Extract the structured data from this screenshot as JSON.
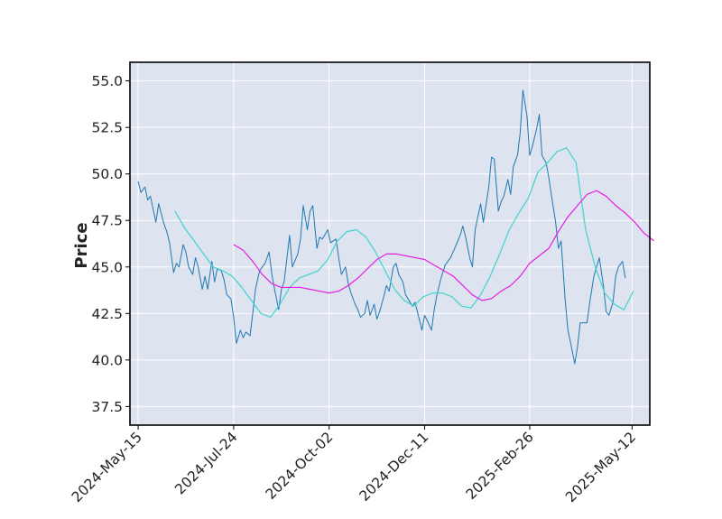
{
  "chart_data": {
    "type": "line",
    "title": "",
    "xlabel": "",
    "ylabel": "Price",
    "x_tick_labels": [
      "2024-May-15",
      "2024-Jul-24",
      "2024-Oct-02",
      "2024-Dec-11",
      "2025-Feb-26",
      "2025-May-12"
    ],
    "y_tick_labels": [
      "37.5",
      "40.0",
      "42.5",
      "45.0",
      "47.5",
      "50.0",
      "52.5",
      "55.0"
    ],
    "ylim": [
      36.5,
      56.0
    ],
    "y_ticks": [
      37.5,
      40.0,
      42.5,
      45.0,
      47.5,
      50.0,
      52.5,
      55.0
    ],
    "x_range": [
      "2024-05-09",
      "2025-05-25"
    ],
    "grid": true,
    "background_color": "#dde3ef",
    "series": [
      {
        "color": "#1f77b4",
        "points": [
          [
            "2024-05-15",
            49.6
          ],
          [
            "2024-05-17",
            49.0
          ],
          [
            "2024-05-20",
            49.3
          ],
          [
            "2024-05-22",
            48.6
          ],
          [
            "2024-05-24",
            48.8
          ],
          [
            "2024-05-28",
            47.4
          ],
          [
            "2024-05-30",
            48.4
          ],
          [
            "2024-06-03",
            47.3
          ],
          [
            "2024-06-05",
            46.9
          ],
          [
            "2024-06-07",
            46.3
          ],
          [
            "2024-06-10",
            44.7
          ],
          [
            "2024-06-12",
            45.2
          ],
          [
            "2024-06-14",
            45.0
          ],
          [
            "2024-06-17",
            46.2
          ],
          [
            "2024-06-19",
            45.8
          ],
          [
            "2024-06-21",
            45.0
          ],
          [
            "2024-06-24",
            44.6
          ],
          [
            "2024-06-26",
            45.5
          ],
          [
            "2024-06-28",
            45.0
          ],
          [
            "2024-07-01",
            43.8
          ],
          [
            "2024-07-03",
            44.5
          ],
          [
            "2024-07-05",
            43.8
          ],
          [
            "2024-07-08",
            45.3
          ],
          [
            "2024-07-10",
            44.2
          ],
          [
            "2024-07-12",
            44.9
          ],
          [
            "2024-07-15",
            44.8
          ],
          [
            "2024-07-17",
            44.3
          ],
          [
            "2024-07-19",
            43.5
          ],
          [
            "2024-07-22",
            43.3
          ],
          [
            "2024-07-24",
            42.3
          ],
          [
            "2024-07-26",
            40.9
          ],
          [
            "2024-07-29",
            41.6
          ],
          [
            "2024-07-31",
            41.2
          ],
          [
            "2024-08-02",
            41.5
          ],
          [
            "2024-08-05",
            41.3
          ],
          [
            "2024-08-07",
            42.5
          ],
          [
            "2024-08-09",
            43.8
          ],
          [
            "2024-08-12",
            44.8
          ],
          [
            "2024-08-14",
            45.0
          ],
          [
            "2024-08-16",
            45.2
          ],
          [
            "2024-08-19",
            45.8
          ],
          [
            "2024-08-21",
            44.6
          ],
          [
            "2024-08-23",
            43.8
          ],
          [
            "2024-08-26",
            42.7
          ],
          [
            "2024-08-28",
            43.8
          ],
          [
            "2024-08-30",
            44.2
          ],
          [
            "2024-09-03",
            46.7
          ],
          [
            "2024-09-05",
            45.0
          ],
          [
            "2024-09-09",
            45.7
          ],
          [
            "2024-09-11",
            46.5
          ],
          [
            "2024-09-13",
            48.3
          ],
          [
            "2024-09-16",
            47.0
          ],
          [
            "2024-09-18",
            48.0
          ],
          [
            "2024-09-20",
            48.3
          ],
          [
            "2024-09-23",
            46.0
          ],
          [
            "2024-09-25",
            46.6
          ],
          [
            "2024-09-27",
            46.5
          ],
          [
            "2024-10-01",
            47.0
          ],
          [
            "2024-10-03",
            46.3
          ],
          [
            "2024-10-07",
            46.5
          ],
          [
            "2024-10-09",
            45.5
          ],
          [
            "2024-10-11",
            44.6
          ],
          [
            "2024-10-14",
            45.0
          ],
          [
            "2024-10-16",
            44.1
          ],
          [
            "2024-10-18",
            43.6
          ],
          [
            "2024-10-21",
            43.0
          ],
          [
            "2024-10-23",
            42.7
          ],
          [
            "2024-10-25",
            42.3
          ],
          [
            "2024-10-28",
            42.5
          ],
          [
            "2024-10-30",
            43.2
          ],
          [
            "2024-11-01",
            42.4
          ],
          [
            "2024-11-04",
            43.0
          ],
          [
            "2024-11-06",
            42.2
          ],
          [
            "2024-11-08",
            42.6
          ],
          [
            "2024-11-11",
            43.4
          ],
          [
            "2024-11-13",
            44.0
          ],
          [
            "2024-11-15",
            43.7
          ],
          [
            "2024-11-18",
            45.0
          ],
          [
            "2024-11-20",
            45.2
          ],
          [
            "2024-11-22",
            44.6
          ],
          [
            "2024-11-25",
            44.2
          ],
          [
            "2024-11-27",
            43.5
          ],
          [
            "2024-12-02",
            42.9
          ],
          [
            "2024-12-04",
            43.1
          ],
          [
            "2024-12-06",
            42.5
          ],
          [
            "2024-12-09",
            41.6
          ],
          [
            "2024-12-11",
            42.4
          ],
          [
            "2024-12-13",
            42.1
          ],
          [
            "2024-12-16",
            41.6
          ],
          [
            "2024-12-18",
            42.7
          ],
          [
            "2024-12-20",
            43.5
          ],
          [
            "2024-12-23",
            44.4
          ],
          [
            "2024-12-26",
            45.1
          ],
          [
            "2024-12-30",
            45.5
          ],
          [
            "2025-01-02",
            46.0
          ],
          [
            "2025-01-06",
            46.7
          ],
          [
            "2025-01-08",
            47.2
          ],
          [
            "2025-01-10",
            46.6
          ],
          [
            "2025-01-13",
            45.5
          ],
          [
            "2025-01-15",
            45.0
          ],
          [
            "2025-01-17",
            47.0
          ],
          [
            "2025-01-21",
            48.4
          ],
          [
            "2025-01-23",
            47.4
          ],
          [
            "2025-01-27",
            49.3
          ],
          [
            "2025-01-29",
            50.9
          ],
          [
            "2025-01-31",
            50.8
          ],
          [
            "2025-02-03",
            48.0
          ],
          [
            "2025-02-05",
            48.5
          ],
          [
            "2025-02-07",
            48.8
          ],
          [
            "2025-02-10",
            49.7
          ],
          [
            "2025-02-12",
            48.9
          ],
          [
            "2025-02-14",
            50.4
          ],
          [
            "2025-02-17",
            51.0
          ],
          [
            "2025-02-19",
            52.2
          ],
          [
            "2025-02-21",
            54.5
          ],
          [
            "2025-02-24",
            53.1
          ],
          [
            "2025-02-26",
            51.0
          ],
          [
            "2025-02-28",
            51.5
          ],
          [
            "2025-03-03",
            52.4
          ],
          [
            "2025-03-05",
            53.2
          ],
          [
            "2025-03-07",
            51.0
          ],
          [
            "2025-03-10",
            50.6
          ],
          [
            "2025-03-12",
            49.8
          ],
          [
            "2025-03-14",
            48.8
          ],
          [
            "2025-03-17",
            47.4
          ],
          [
            "2025-03-19",
            46.0
          ],
          [
            "2025-03-21",
            46.4
          ],
          [
            "2025-03-24",
            43.2
          ],
          [
            "2025-03-26",
            41.6
          ],
          [
            "2025-03-28",
            40.9
          ],
          [
            "2025-03-31",
            39.8
          ],
          [
            "2025-04-02",
            40.7
          ],
          [
            "2025-04-04",
            42.0
          ],
          [
            "2025-04-07",
            42.0
          ],
          [
            "2025-04-09",
            42.0
          ],
          [
            "2025-04-11",
            43.1
          ],
          [
            "2025-04-14",
            44.5
          ],
          [
            "2025-04-16",
            45.0
          ],
          [
            "2025-04-18",
            45.5
          ],
          [
            "2025-04-21",
            44.0
          ],
          [
            "2025-04-23",
            42.6
          ],
          [
            "2025-04-25",
            42.4
          ],
          [
            "2025-04-28",
            43.1
          ],
          [
            "2025-04-30",
            44.5
          ],
          [
            "2025-05-02",
            45.0
          ],
          [
            "2025-05-05",
            45.3
          ],
          [
            "2025-05-07",
            44.4
          ]
        ]
      },
      {
        "color": "#40d4cc",
        "points": [
          [
            "2024-06-11",
            48.0
          ],
          [
            "2024-06-18",
            47.1
          ],
          [
            "2024-06-25",
            46.4
          ],
          [
            "2024-07-02",
            45.7
          ],
          [
            "2024-07-09",
            45.0
          ],
          [
            "2024-07-16",
            44.8
          ],
          [
            "2024-07-23",
            44.5
          ],
          [
            "2024-07-30",
            43.9
          ],
          [
            "2024-08-06",
            43.2
          ],
          [
            "2024-08-13",
            42.5
          ],
          [
            "2024-08-20",
            42.3
          ],
          [
            "2024-08-27",
            43.0
          ],
          [
            "2024-09-03",
            43.9
          ],
          [
            "2024-09-10",
            44.4
          ],
          [
            "2024-09-17",
            44.6
          ],
          [
            "2024-09-24",
            44.8
          ],
          [
            "2024-10-01",
            45.4
          ],
          [
            "2024-10-08",
            46.4
          ],
          [
            "2024-10-15",
            46.9
          ],
          [
            "2024-10-22",
            47.0
          ],
          [
            "2024-10-29",
            46.6
          ],
          [
            "2024-11-05",
            45.8
          ],
          [
            "2024-11-12",
            44.8
          ],
          [
            "2024-11-19",
            43.8
          ],
          [
            "2024-11-26",
            43.2
          ],
          [
            "2024-12-03",
            42.9
          ],
          [
            "2024-12-10",
            43.4
          ],
          [
            "2024-12-17",
            43.6
          ],
          [
            "2024-12-24",
            43.6
          ],
          [
            "2024-12-31",
            43.4
          ],
          [
            "2025-01-07",
            42.9
          ],
          [
            "2025-01-14",
            42.8
          ],
          [
            "2025-01-21",
            43.5
          ],
          [
            "2025-01-28",
            44.5
          ],
          [
            "2025-02-04",
            45.7
          ],
          [
            "2025-02-11",
            47.0
          ],
          [
            "2025-02-18",
            47.9
          ],
          [
            "2025-02-25",
            48.7
          ],
          [
            "2025-03-04",
            50.1
          ],
          [
            "2025-03-11",
            50.6
          ],
          [
            "2025-03-18",
            51.2
          ],
          [
            "2025-03-25",
            51.4
          ],
          [
            "2025-04-01",
            50.6
          ],
          [
            "2025-04-08",
            47.0
          ],
          [
            "2025-04-15",
            45.0
          ],
          [
            "2025-04-22",
            43.6
          ],
          [
            "2025-04-29",
            43.0
          ],
          [
            "2025-05-06",
            42.7
          ],
          [
            "2025-05-13",
            43.7
          ]
        ]
      },
      {
        "color": "#e51ee5",
        "points": [
          [
            "2024-07-24",
            46.2
          ],
          [
            "2024-07-31",
            45.9
          ],
          [
            "2024-08-07",
            45.3
          ],
          [
            "2024-08-14",
            44.6
          ],
          [
            "2024-08-21",
            44.1
          ],
          [
            "2024-08-28",
            43.9
          ],
          [
            "2024-09-04",
            43.9
          ],
          [
            "2024-09-11",
            43.9
          ],
          [
            "2024-09-18",
            43.8
          ],
          [
            "2024-09-25",
            43.7
          ],
          [
            "2024-10-02",
            43.6
          ],
          [
            "2024-10-09",
            43.7
          ],
          [
            "2024-10-16",
            44.0
          ],
          [
            "2024-10-23",
            44.4
          ],
          [
            "2024-10-30",
            44.9
          ],
          [
            "2024-11-06",
            45.4
          ],
          [
            "2024-11-13",
            45.7
          ],
          [
            "2024-11-20",
            45.7
          ],
          [
            "2024-11-27",
            45.6
          ],
          [
            "2024-12-04",
            45.5
          ],
          [
            "2024-12-11",
            45.4
          ],
          [
            "2024-12-18",
            45.1
          ],
          [
            "2024-12-25",
            44.8
          ],
          [
            "2025-01-01",
            44.5
          ],
          [
            "2025-01-08",
            44.0
          ],
          [
            "2025-01-15",
            43.5
          ],
          [
            "2025-01-22",
            43.2
          ],
          [
            "2025-01-29",
            43.3
          ],
          [
            "2025-02-05",
            43.7
          ],
          [
            "2025-02-12",
            44.0
          ],
          [
            "2025-02-19",
            44.5
          ],
          [
            "2025-02-26",
            45.2
          ],
          [
            "2025-03-05",
            45.6
          ],
          [
            "2025-03-12",
            46.0
          ],
          [
            "2025-03-19",
            46.9
          ],
          [
            "2025-03-26",
            47.7
          ],
          [
            "2025-04-02",
            48.3
          ],
          [
            "2025-04-09",
            48.9
          ],
          [
            "2025-04-16",
            49.1
          ],
          [
            "2025-04-23",
            48.8
          ],
          [
            "2025-04-30",
            48.3
          ],
          [
            "2025-05-07",
            47.9
          ],
          [
            "2025-05-14",
            47.4
          ],
          [
            "2025-05-21",
            46.8
          ],
          [
            "2025-05-28",
            46.4
          ]
        ]
      }
    ]
  }
}
